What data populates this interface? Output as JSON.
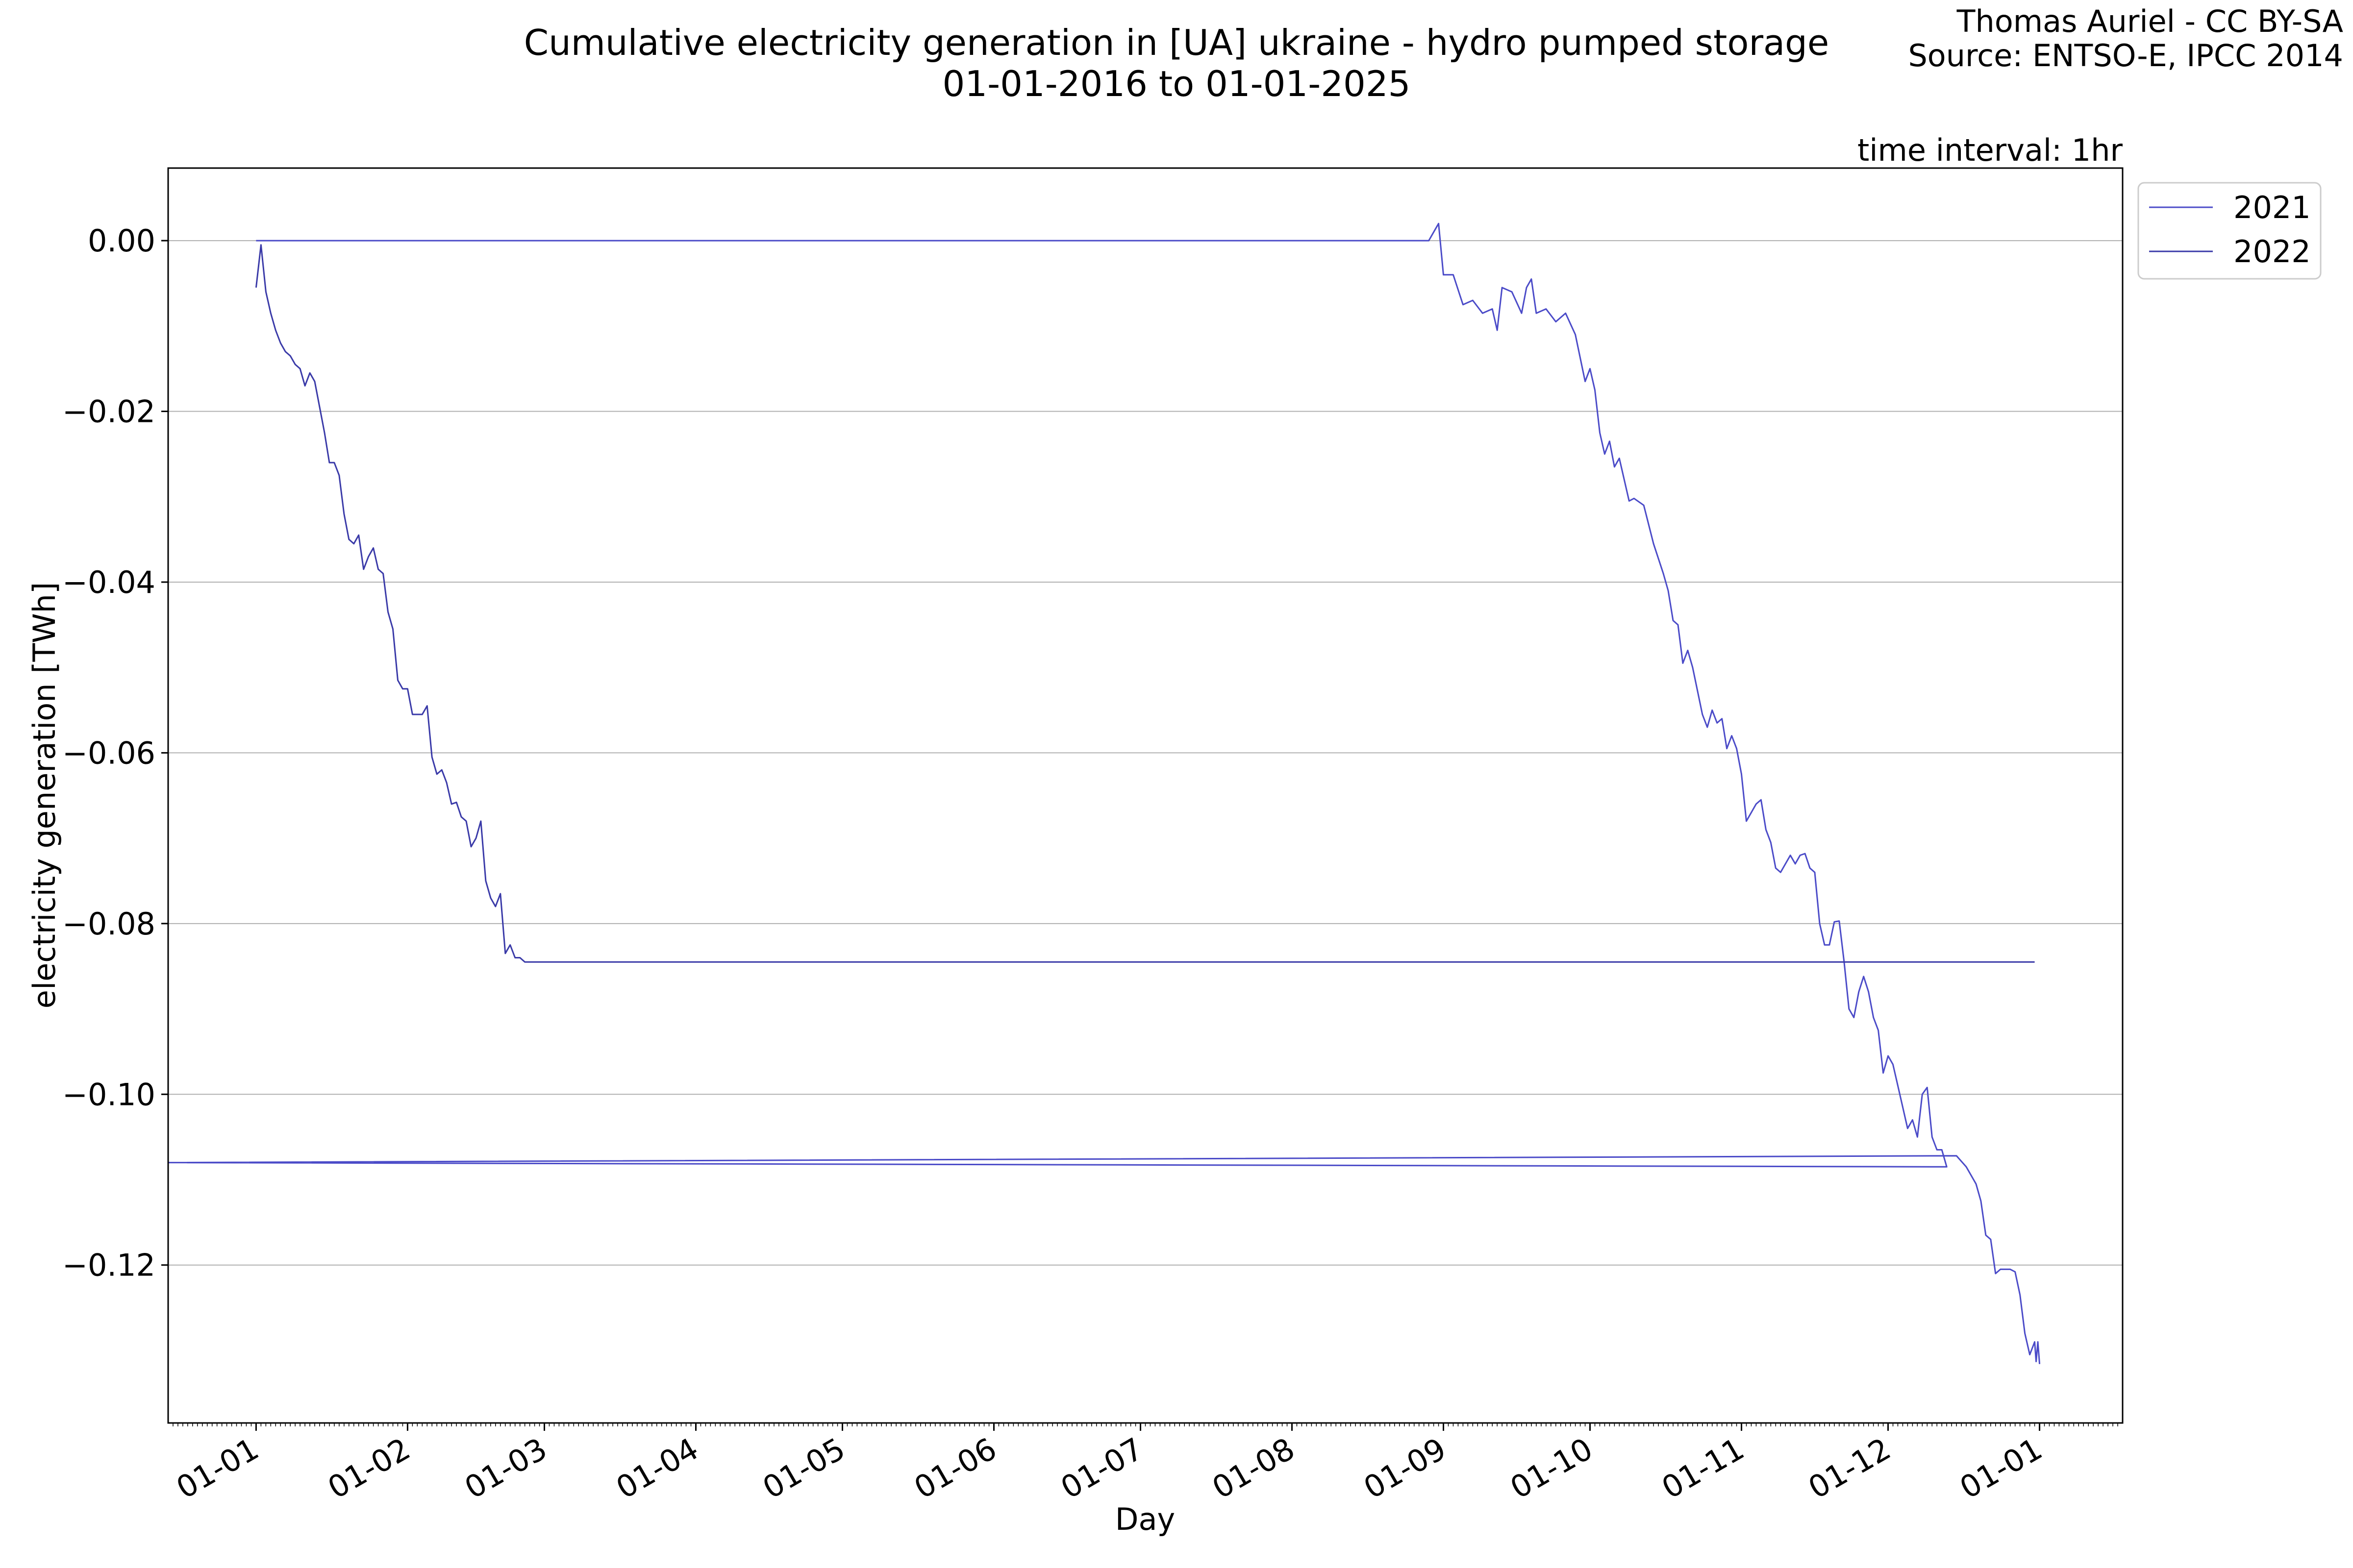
{
  "header": {
    "title_line1": "Cumulative electricity generation in [UA] ukraine - hydro pumped storage",
    "title_line2": "01-01-2016 to 01-01-2025",
    "credit_line1": "Thomas Auriel - CC BY-SA",
    "credit_line2": "Source: ENTSO-E, IPCC 2014",
    "interval_note": "time interval: 1hr"
  },
  "colors": {
    "line_2021": "#4b4bc8",
    "line_2022": "#3a3aa8",
    "grid": "#b0b0b0",
    "axes": "#000000"
  },
  "chart_data": {
    "type": "line",
    "title": "Cumulative electricity generation in [UA] ukraine - hydro pumped storage",
    "subtitle": "01-01-2016 to 01-01-2025",
    "xlabel": "Day",
    "ylabel": "electricity generation [TWh]",
    "x_unit": "day of year (MM-DD)",
    "xlim": [
      "12-14",
      "01-18 (next year)"
    ],
    "ylim": [
      -0.1385,
      0.0085
    ],
    "xticks": [
      "01-01",
      "01-02",
      "01-03",
      "01-04",
      "01-05",
      "01-06",
      "01-07",
      "01-08",
      "01-09",
      "01-10",
      "01-11",
      "01-12",
      "01-01"
    ],
    "yticks": [
      "0.00",
      "−0.02",
      "−0.04",
      "−0.06",
      "−0.08",
      "−0.10",
      "−0.12"
    ],
    "ytick_values": [
      0.0,
      -0.02,
      -0.04,
      -0.06,
      -0.08,
      -0.1,
      -0.12
    ],
    "grid": "horizontal",
    "legend_position": "outside top-right",
    "series": [
      {
        "name": "2021",
        "points": [
          [
            "01-01",
            0.0
          ],
          [
            "08-29",
            0.0
          ],
          [
            "08-31",
            0.002
          ],
          [
            "09-01",
            -0.004
          ],
          [
            "09-03",
            -0.004
          ],
          [
            "09-05",
            -0.0075
          ],
          [
            "09-07",
            -0.007
          ],
          [
            "09-09",
            -0.0085
          ],
          [
            "09-11",
            -0.008
          ],
          [
            "09-12",
            -0.0105
          ],
          [
            "09-13",
            -0.0055
          ],
          [
            "09-15",
            -0.006
          ],
          [
            "09-17",
            -0.0085
          ],
          [
            "09-18",
            -0.0055
          ],
          [
            "09-19",
            -0.0045
          ],
          [
            "09-20",
            -0.0085
          ],
          [
            "09-22",
            -0.008
          ],
          [
            "09-24",
            -0.0095
          ],
          [
            "09-26",
            -0.0085
          ],
          [
            "09-28",
            -0.011
          ],
          [
            "09-30",
            -0.0165
          ],
          [
            "10-01",
            -0.015
          ],
          [
            "10-02",
            -0.0175
          ],
          [
            "10-03",
            -0.0225
          ],
          [
            "10-04",
            -0.025
          ],
          [
            "10-05",
            -0.0235
          ],
          [
            "10-06",
            -0.0265
          ],
          [
            "10-07",
            -0.0255
          ],
          [
            "10-09",
            -0.0305
          ],
          [
            "10-10",
            -0.0302
          ],
          [
            "10-12",
            -0.031
          ],
          [
            "10-14",
            -0.0355
          ],
          [
            "10-16",
            -0.039
          ],
          [
            "10-17",
            -0.041
          ],
          [
            "10-18",
            -0.0445
          ],
          [
            "10-19",
            -0.045
          ],
          [
            "10-20",
            -0.0495
          ],
          [
            "10-21",
            -0.048
          ],
          [
            "10-22",
            -0.05
          ],
          [
            "10-24",
            -0.0555
          ],
          [
            "10-25",
            -0.057
          ],
          [
            "10-26",
            -0.055
          ],
          [
            "10-27",
            -0.0565
          ],
          [
            "10-28",
            -0.056
          ],
          [
            "10-29",
            -0.0595
          ],
          [
            "10-30",
            -0.058
          ],
          [
            "10-31",
            -0.0595
          ],
          [
            "11-01",
            -0.0625
          ],
          [
            "11-02",
            -0.068
          ],
          [
            "11-04",
            -0.066
          ],
          [
            "11-05",
            -0.0655
          ],
          [
            "11-06",
            -0.069
          ],
          [
            "11-07",
            -0.0705
          ],
          [
            "11-08",
            -0.0735
          ],
          [
            "11-09",
            -0.074
          ],
          [
            "11-11",
            -0.072
          ],
          [
            "11-12",
            -0.073
          ],
          [
            "11-13",
            -0.072
          ],
          [
            "11-14",
            -0.0718
          ],
          [
            "11-15",
            -0.0735
          ],
          [
            "11-16",
            -0.074
          ],
          [
            "11-17",
            -0.08
          ],
          [
            "11-18",
            -0.0825
          ],
          [
            "11-19",
            -0.0825
          ],
          [
            "11-20",
            -0.0798
          ],
          [
            "11-21",
            -0.0797
          ],
          [
            "11-22",
            -0.0845
          ],
          [
            "11-23",
            -0.09
          ],
          [
            "11-24",
            -0.091
          ],
          [
            "11-25",
            -0.088
          ],
          [
            "11-26",
            -0.0862
          ],
          [
            "11-27",
            -0.088
          ],
          [
            "11-28",
            -0.091
          ],
          [
            "11-29",
            -0.0925
          ],
          [
            "11-30",
            -0.0975
          ],
          [
            "12-01",
            -0.0955
          ],
          [
            "12-02",
            -0.0965
          ],
          [
            "12-03",
            -0.099
          ],
          [
            "12-05",
            -0.104
          ],
          [
            "12-06",
            -0.103
          ],
          [
            "12-07",
            -0.105
          ],
          [
            "12-08",
            -0.1
          ],
          [
            "12-09",
            -0.0992
          ],
          [
            "12-10",
            -0.105
          ],
          [
            "12-11",
            -0.1065
          ],
          [
            "12-12",
            -0.1065
          ],
          [
            "12-13",
            -0.1085
          ],
          [
            "12-14",
            -0.108
          ],
          [
            "12-15",
            -0.1072
          ],
          [
            "12-17",
            -0.1085
          ],
          [
            "12-19",
            -0.1105
          ],
          [
            "12-20",
            -0.1125
          ],
          [
            "12-21",
            -0.1165
          ],
          [
            "12-22",
            -0.117
          ],
          [
            "12-23",
            -0.121
          ],
          [
            "12-24",
            -0.1205
          ],
          [
            "12-26",
            -0.1205
          ],
          [
            "12-27",
            -0.1208
          ],
          [
            "12-28",
            -0.1235
          ],
          [
            "12-29",
            -0.128
          ],
          [
            "12-30",
            -0.1305
          ],
          [
            "12-31",
            -0.129
          ],
          [
            "01-01 (next year)",
            -0.1313
          ],
          [
            "01-01 (next year)",
            -0.129
          ],
          [
            "01-01 (next year)",
            -0.1316
          ]
        ]
      },
      {
        "name": "2022",
        "points": [
          [
            "01-01",
            -0.0055
          ],
          [
            "01-02",
            -0.0005
          ],
          [
            "01-03",
            -0.006
          ],
          [
            "01-04",
            -0.0085
          ],
          [
            "01-05",
            -0.0105
          ],
          [
            "01-06",
            -0.012
          ],
          [
            "01-07",
            -0.013
          ],
          [
            "01-08",
            -0.0135
          ],
          [
            "01-09",
            -0.0145
          ],
          [
            "01-10",
            -0.015
          ],
          [
            "01-11",
            -0.017
          ],
          [
            "01-12",
            -0.0155
          ],
          [
            "01-13",
            -0.0165
          ],
          [
            "01-14",
            -0.0195
          ],
          [
            "01-15",
            -0.0225
          ],
          [
            "01-16",
            -0.026
          ],
          [
            "01-17",
            -0.026
          ],
          [
            "01-18",
            -0.0275
          ],
          [
            "01-19",
            -0.032
          ],
          [
            "01-20",
            -0.035
          ],
          [
            "01-21",
            -0.0355
          ],
          [
            "01-22",
            -0.0345
          ],
          [
            "01-23",
            -0.0385
          ],
          [
            "01-24",
            -0.037
          ],
          [
            "01-25",
            -0.036
          ],
          [
            "01-26",
            -0.0385
          ],
          [
            "01-27",
            -0.039
          ],
          [
            "01-28",
            -0.0435
          ],
          [
            "01-29",
            -0.0455
          ],
          [
            "01-30",
            -0.0515
          ],
          [
            "01-31",
            -0.0525
          ],
          [
            "02-01",
            -0.0525
          ],
          [
            "02-02",
            -0.0555
          ],
          [
            "02-03",
            -0.0555
          ],
          [
            "02-04",
            -0.0555
          ],
          [
            "02-05",
            -0.0545
          ],
          [
            "02-06",
            -0.0605
          ],
          [
            "02-07",
            -0.0625
          ],
          [
            "02-08",
            -0.062
          ],
          [
            "02-09",
            -0.0635
          ],
          [
            "02-10",
            -0.066
          ],
          [
            "02-11",
            -0.0658
          ],
          [
            "02-12",
            -0.0675
          ],
          [
            "02-13",
            -0.068
          ],
          [
            "02-14",
            -0.071
          ],
          [
            "02-15",
            -0.07
          ],
          [
            "02-16",
            -0.068
          ],
          [
            "02-17",
            -0.075
          ],
          [
            "02-18",
            -0.077
          ],
          [
            "02-19",
            -0.078
          ],
          [
            "02-20",
            -0.0765
          ],
          [
            "02-21",
            -0.0835
          ],
          [
            "02-22",
            -0.0825
          ],
          [
            "02-23",
            -0.084
          ],
          [
            "02-24",
            -0.084
          ],
          [
            "02-25",
            -0.0845
          ],
          [
            "12-31",
            -0.0845
          ]
        ]
      }
    ]
  }
}
